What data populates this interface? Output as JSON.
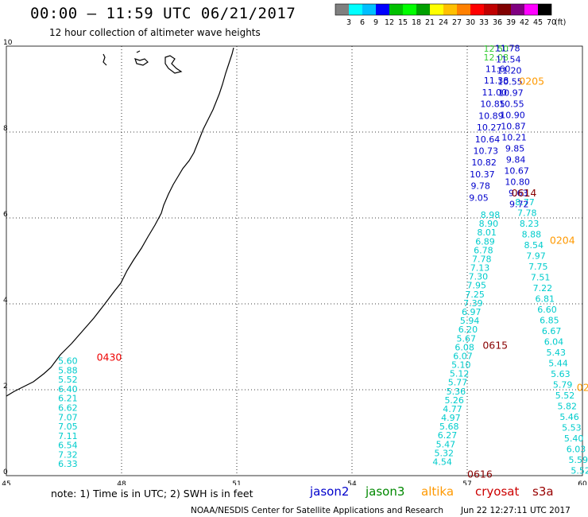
{
  "header": {
    "title": "00:00 – 11:59 UTC 06/21/2017",
    "subtitle": "12 hour collection of altimeter wave heights"
  },
  "colorbar": {
    "colors": [
      "#808080",
      "#00ffff",
      "#00bfff",
      "#0000ff",
      "#00c000",
      "#00ff00",
      "#00a000",
      "#ffff00",
      "#ffc000",
      "#ff8000",
      "#ff0000",
      "#c00000",
      "#800000",
      "#800080",
      "#ff00ff",
      "#000000"
    ],
    "labels": [
      "3",
      "6",
      "9",
      "12",
      "15",
      "18",
      "21",
      "24",
      "27",
      "30",
      "33",
      "36",
      "39",
      "42",
      "45",
      "70"
    ],
    "unit": "(ft)"
  },
  "axes": {
    "x_ticks": [
      "45",
      "48",
      "51",
      "54",
      "57",
      "60"
    ],
    "y_ticks": [
      "0",
      "2",
      "4",
      "6",
      "8",
      "10"
    ],
    "x_values": [
      45,
      48,
      51,
      54,
      57,
      60
    ],
    "y_values": [
      0,
      2,
      4,
      6,
      8,
      10
    ]
  },
  "satellites": [
    {
      "name": "jason2",
      "color": "#0000cc"
    },
    {
      "name": "jason3",
      "color": "#008800"
    },
    {
      "name": "altika",
      "color": "#ff9900"
    },
    {
      "name": "cryosat",
      "color": "#cc0000"
    },
    {
      "name": "s3a",
      "color": "#990000"
    }
  ],
  "note": "note:  1) Time is in UTC;  2) SWH is in feet",
  "credit": "NOAA/NESDIS Center for Satellite Applications and Research",
  "stamp": "Jun 22 12:27:11 UTC 2017",
  "time_labels": [
    {
      "text": "0430",
      "lon": 47.35,
      "lat": 2.68,
      "color": "#ee0000"
    },
    {
      "text": "0205",
      "lon": 58.35,
      "lat": 9.1,
      "color": "#ff9900"
    },
    {
      "text": "0614",
      "lon": 58.15,
      "lat": 6.5,
      "color": "#880000"
    },
    {
      "text": "0204",
      "lon": 59.15,
      "lat": 5.4,
      "color": "#ff9900"
    },
    {
      "text": "0615",
      "lon": 57.4,
      "lat": 2.95,
      "color": "#880000"
    },
    {
      "text": "0616",
      "lon": 57.0,
      "lat": -0.05,
      "color": "#880000"
    },
    {
      "text": "02",
      "lon": 59.85,
      "lat": 1.97,
      "color": "#ff9900"
    }
  ],
  "tracks": [
    {
      "id": "west",
      "color": "#00cccc",
      "lon_start": 46.6,
      "lon_end": 46.6,
      "lat_start": 2.6,
      "lat_end": 0.2,
      "values": [
        "5.60",
        "5.88",
        "5.52",
        "6.40",
        "6.21",
        "6.62",
        "7.07",
        "7.05",
        "7.11",
        "6.54",
        "7.32",
        "6.33"
      ]
    },
    {
      "id": "mid-cyan",
      "color": "#00cccc",
      "lon_start": 57.6,
      "lon_end": 56.35,
      "lat_start": 6.0,
      "lat_end": 0.25,
      "values": [
        "8.98",
        "8.90",
        "8.01",
        "6.89",
        "6.78",
        "7.78",
        "7.13",
        "7.30",
        "7.95",
        "7.25",
        "7.39",
        "6.97",
        "5.94",
        "6.20",
        "5.67",
        "6.08",
        "6.07",
        "5.10",
        "5.12",
        "5.77",
        "5.36",
        "5.26",
        "4.77",
        "4.97",
        "5.68",
        "6.27",
        "5.47",
        "5.32",
        "4.54"
      ]
    },
    {
      "id": "east-cyan",
      "color": "#00cccc",
      "lon_start": 58.5,
      "lon_end": 59.95,
      "lat_start": 6.3,
      "lat_end": 0.05,
      "values": [
        "8.77",
        "7.78",
        "8.23",
        "8.88",
        "8.54",
        "7.97",
        "7.75",
        "7.51",
        "7.22",
        "6.81",
        "6.60",
        "6.85",
        "6.67",
        "6.04",
        "5.43",
        "5.44",
        "5.63",
        "5.79",
        "5.52",
        "5.82",
        "5.46",
        "5.53",
        "5.40",
        "6.03",
        "5.59",
        "5.52"
      ]
    },
    {
      "id": "jason3-top",
      "color": "#33cc33",
      "lon_start": 57.75,
      "lon_end": 57.75,
      "lat_start": 9.87,
      "lat_end": 9.67,
      "values": [
        "12.50",
        "12.08"
      ]
    },
    {
      "id": "blue-a",
      "color": "#0000cc",
      "lon_start": 57.8,
      "lon_end": 57.3,
      "lat_start": 9.4,
      "lat_end": 6.4,
      "values": [
        "11.60",
        "11.38",
        "11.00",
        "10.85",
        "10.89",
        "10.27",
        "10.64",
        "10.73",
        "10.82",
        "10.37",
        "9.78",
        "9.05"
      ]
    },
    {
      "id": "blue-b",
      "color": "#0000cc",
      "lon_start": 58.05,
      "lon_end": 58.35,
      "lat_start": 9.88,
      "lat_end": 6.25,
      "values": [
        "11.78",
        "11.54",
        "11.20",
        "10.55",
        "10.97",
        "10.55",
        "10.90",
        "10.87",
        "10.21",
        "9.85",
        "9.84",
        "10.67",
        "10.80",
        "9.63",
        "9.72"
      ]
    }
  ]
}
